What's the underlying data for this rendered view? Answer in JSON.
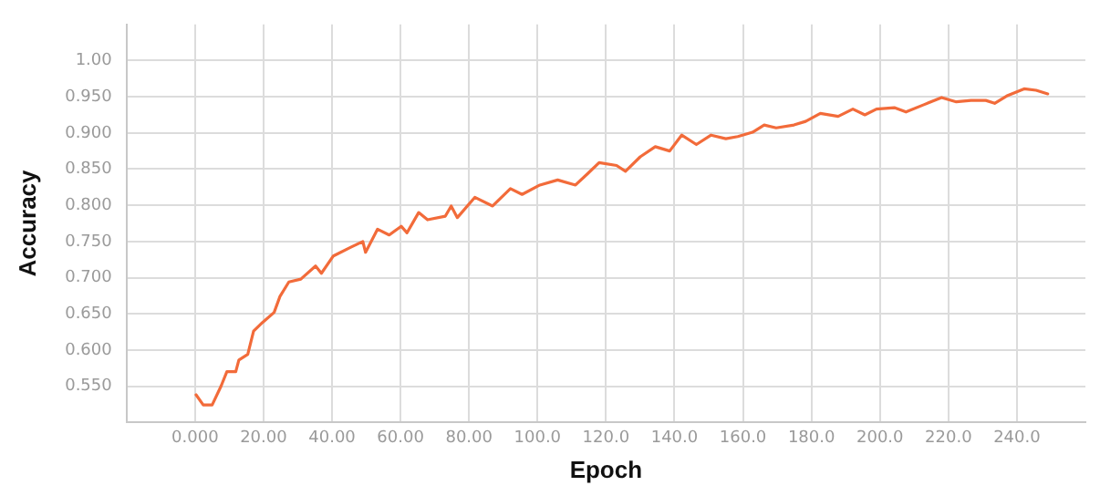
{
  "chart_data": {
    "type": "line",
    "xlabel": "Epoch",
    "ylabel": "Accuracy",
    "xlim": [
      -20,
      260
    ],
    "ylim": [
      0.5,
      1.05
    ],
    "xticks": [
      {
        "value": 0,
        "label": "0.000"
      },
      {
        "value": 20,
        "label": "20.00"
      },
      {
        "value": 40,
        "label": "40.00"
      },
      {
        "value": 60,
        "label": "60.00"
      },
      {
        "value": 80,
        "label": "80.00"
      },
      {
        "value": 100,
        "label": "100.0"
      },
      {
        "value": 120,
        "label": "120.0"
      },
      {
        "value": 140,
        "label": "140.0"
      },
      {
        "value": 160,
        "label": "160.0"
      },
      {
        "value": 180,
        "label": "180.0"
      },
      {
        "value": 200,
        "label": "200.0"
      },
      {
        "value": 220,
        "label": "220.0"
      },
      {
        "value": 240,
        "label": "240.0"
      }
    ],
    "yticks": [
      {
        "value": 0.55,
        "label": "0.550"
      },
      {
        "value": 0.6,
        "label": "0.600"
      },
      {
        "value": 0.65,
        "label": "0.650"
      },
      {
        "value": 0.7,
        "label": "0.700"
      },
      {
        "value": 0.75,
        "label": "0.750"
      },
      {
        "value": 0.8,
        "label": "0.800"
      },
      {
        "value": 0.85,
        "label": "0.850"
      },
      {
        "value": 0.9,
        "label": "0.900"
      },
      {
        "value": 0.95,
        "label": "0.950"
      },
      {
        "value": 1,
        "label": "1.00"
      }
    ],
    "grid": true,
    "legend": false,
    "marker": "none",
    "line_style": "solid",
    "series": [
      {
        "color": "#f26b3a",
        "x": [
          0.3,
          2.4,
          5,
          7.6,
          9.3,
          11.9,
          12.8,
          15.4,
          17.1,
          19.7,
          23.1,
          24.8,
          27.4,
          30.9,
          35.2,
          36.9,
          40.4,
          45.5,
          49,
          49.8,
          53.3,
          56.7,
          60.2,
          61.9,
          65.3,
          67.9,
          73.1,
          74.8,
          76.6,
          81.7,
          86.9,
          92.1,
          95.5,
          100.7,
          105.9,
          111.1,
          114.5,
          118,
          123.1,
          125.7,
          130,
          134.4,
          138.6,
          142.1,
          146.4,
          150.7,
          155,
          158.5,
          162.8,
          166.2,
          169.7,
          174.9,
          178.3,
          182.6,
          187.8,
          192.1,
          195.6,
          199,
          204.2,
          207.6,
          212.8,
          218,
          222.3,
          226.6,
          230.9,
          233.5,
          237,
          242.1,
          245.6,
          249
        ],
        "values": [
          0.538,
          0.524,
          0.524,
          0.55,
          0.57,
          0.57,
          0.586,
          0.594,
          0.626,
          0.638,
          0.652,
          0.674,
          0.694,
          0.698,
          0.716,
          0.706,
          0.73,
          0.742,
          0.75,
          0.735,
          0.767,
          0.759,
          0.771,
          0.762,
          0.79,
          0.78,
          0.785,
          0.799,
          0.783,
          0.811,
          0.799,
          0.823,
          0.815,
          0.828,
          0.835,
          0.828,
          0.843,
          0.859,
          0.855,
          0.847,
          0.867,
          0.881,
          0.875,
          0.897,
          0.884,
          0.897,
          0.892,
          0.895,
          0.901,
          0.911,
          0.907,
          0.911,
          0.916,
          0.927,
          0.923,
          0.933,
          0.925,
          0.933,
          0.935,
          0.929,
          0.939,
          0.949,
          0.943,
          0.945,
          0.945,
          0.941,
          0.951,
          0.961,
          0.959,
          0.954
        ]
      }
    ]
  }
}
